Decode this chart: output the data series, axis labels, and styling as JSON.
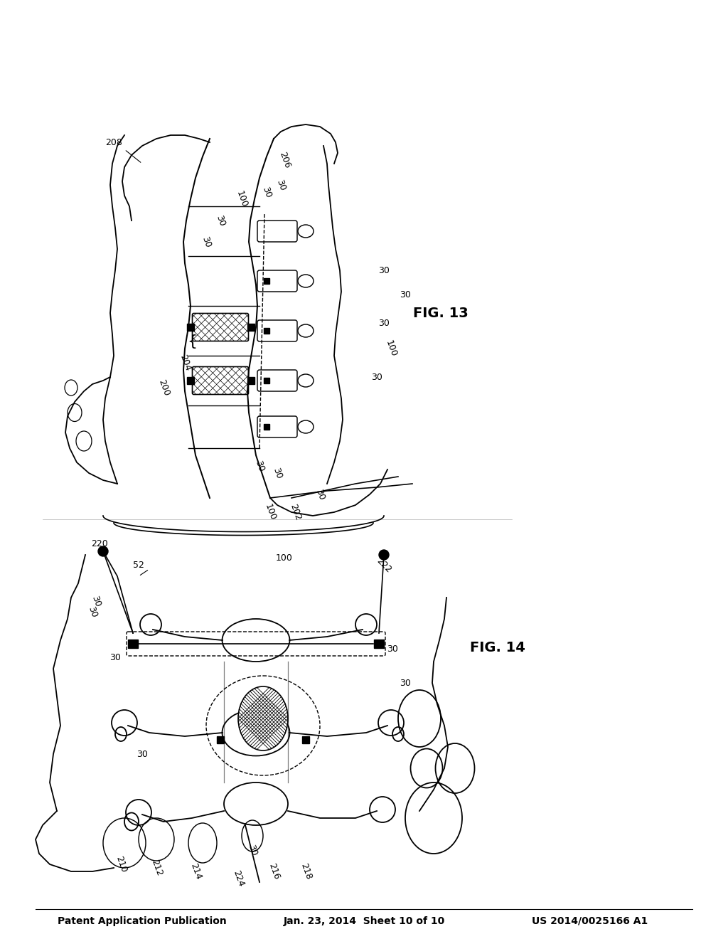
{
  "bg_color": "#ffffff",
  "title_line1": "Patent Application Publication",
  "title_line2": "Jan. 23, 2014  Sheet 10 of 10",
  "title_line3": "US 2014/0025166 A1",
  "fig14_label": "FIG. 14",
  "fig13_label": "FIG. 13",
  "text_color": "#000000",
  "line_color": "#000000",
  "header_fontsize": 11,
  "label_fontsize": 10
}
